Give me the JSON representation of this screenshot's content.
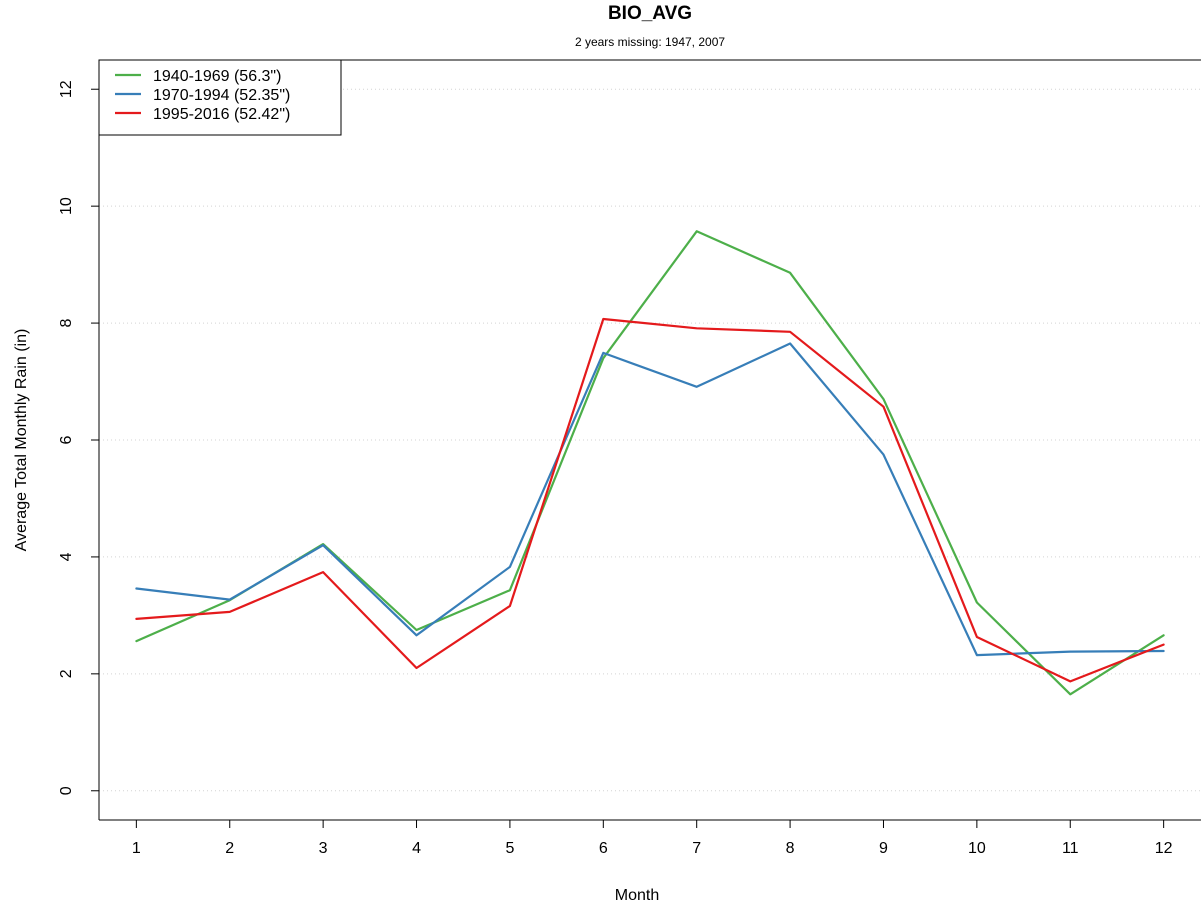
{
  "chart_data": {
    "type": "line",
    "title": "BIO_AVG",
    "subtitle": "2 years missing: 1947, 2007",
    "xlabel": "Month",
    "ylabel": "Average Total Monthly Rain (in)",
    "x": [
      1,
      2,
      3,
      4,
      5,
      6,
      7,
      8,
      9,
      10,
      11,
      12
    ],
    "x_tick_labels": [
      "1",
      "2",
      "3",
      "4",
      "5",
      "6",
      "7",
      "8",
      "9",
      "10",
      "11",
      "12"
    ],
    "y_ticks": [
      0,
      2,
      4,
      6,
      8,
      10,
      12
    ],
    "y_tick_labels": [
      "0",
      "2",
      "4",
      "6",
      "8",
      "10",
      "12"
    ],
    "xlim": [
      0.6,
      12.4
    ],
    "ylim": [
      -0.5,
      12.5
    ],
    "grid": "horizontal dotted",
    "legend_position": "top-left",
    "series": [
      {
        "name": "1940-1969 (56.3\")",
        "color": "#4daf4a",
        "values": [
          2.56,
          3.26,
          4.22,
          2.75,
          3.43,
          7.4,
          9.57,
          8.86,
          6.7,
          3.22,
          1.65,
          2.66
        ]
      },
      {
        "name": "1970-1994 (52.35\")",
        "color": "#377eb8",
        "values": [
          3.46,
          3.27,
          4.2,
          2.66,
          3.83,
          7.49,
          6.91,
          7.65,
          5.75,
          2.32,
          2.38,
          2.39
        ]
      },
      {
        "name": "1995-2016 (52.42\")",
        "color": "#e41a1c",
        "values": [
          2.94,
          3.06,
          3.74,
          2.1,
          3.16,
          8.07,
          7.91,
          7.85,
          6.57,
          2.63,
          1.87,
          2.5
        ]
      }
    ]
  }
}
